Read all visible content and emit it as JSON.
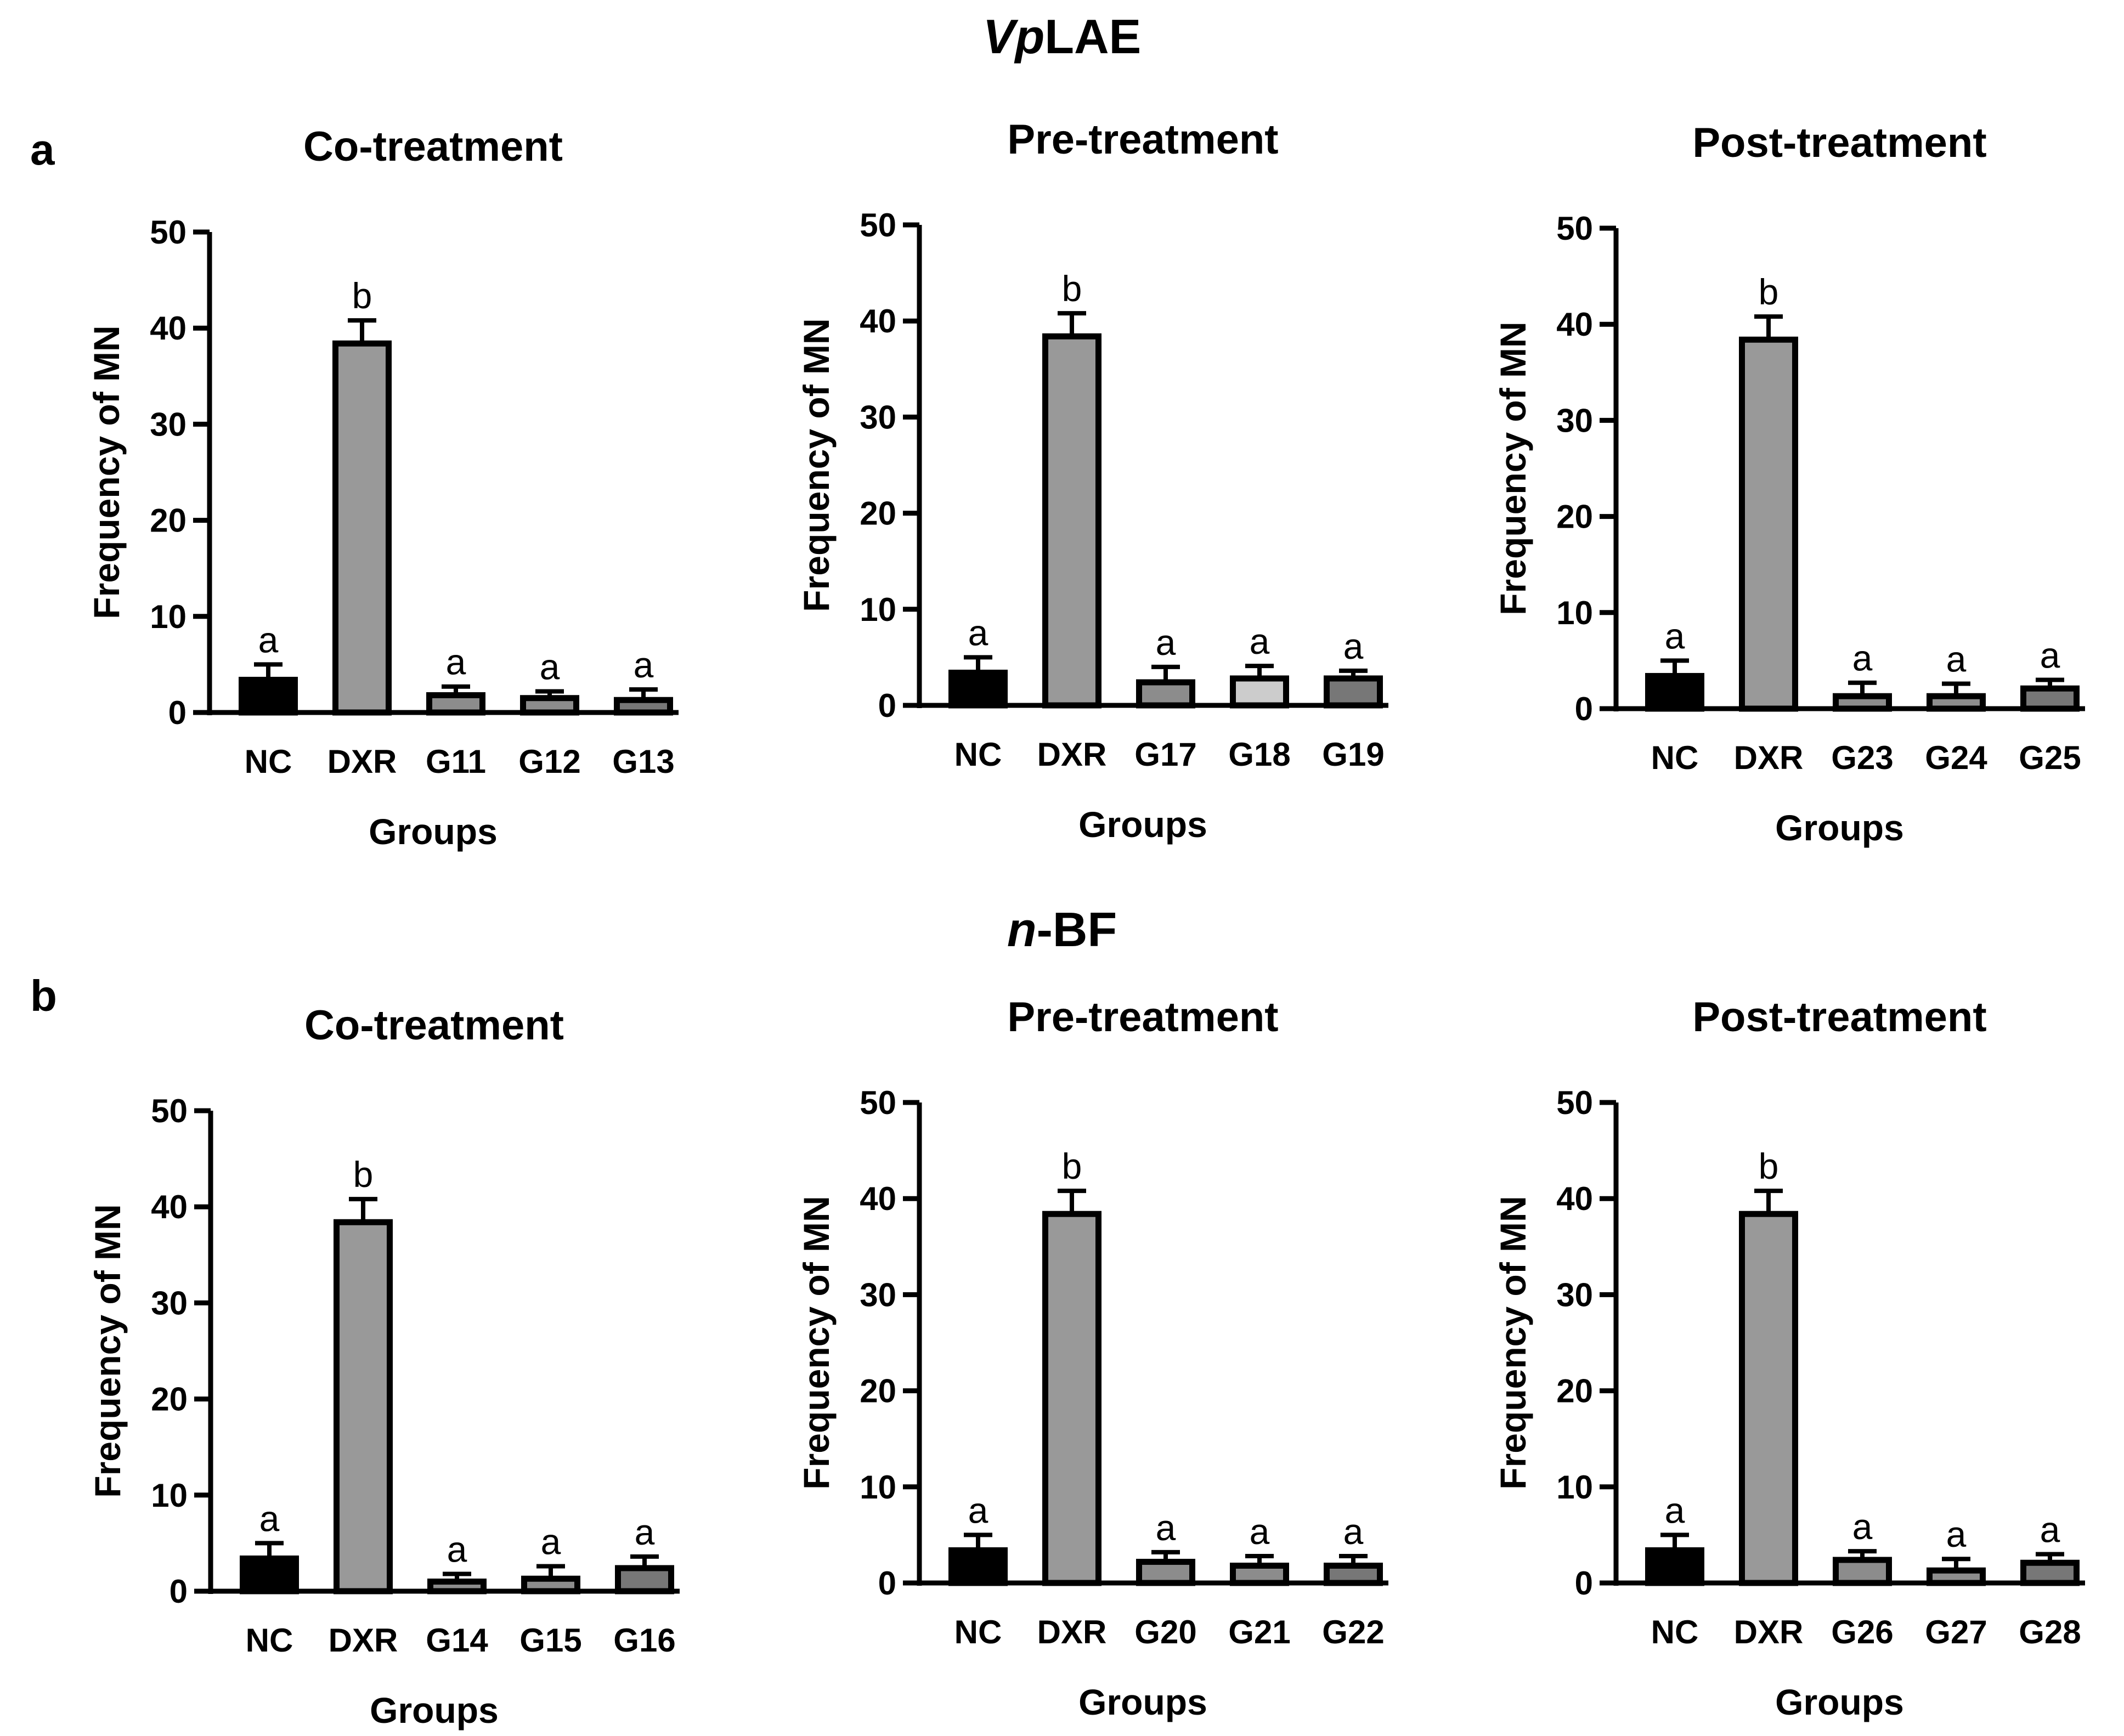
{
  "sections": [
    {
      "label": "a",
      "title_italic": "Vp",
      "title_rest": "LAE"
    },
    {
      "label": "b",
      "title_italic": "n",
      "title_rest": "-BF"
    }
  ],
  "colors": {
    "NC": "#000000",
    "DXR": "#999999",
    "G_dark": "#777777",
    "G_mid": "#8c8c8c",
    "G_light": "#cccccc"
  },
  "chart_data": [
    {
      "type": "bar",
      "section": "a",
      "title": "Co-treatment",
      "xlabel": "Groups",
      "ylabel": "Frequency of MN",
      "ylim": [
        0,
        50
      ],
      "yticks": [
        0,
        10,
        20,
        30,
        40,
        50
      ],
      "categories": [
        "NC",
        "DXR",
        "G11",
        "G12",
        "G13"
      ],
      "values": [
        3.4,
        38.4,
        1.8,
        1.5,
        1.3
      ],
      "errors": [
        1.6,
        2.4,
        0.9,
        0.7,
        1.1
      ],
      "letters": [
        "a",
        "b",
        "a",
        "a",
        "a"
      ],
      "bar_colors": [
        "#000000",
        "#999999",
        "#8c8c8c",
        "#8c8c8c",
        "#777777"
      ]
    },
    {
      "type": "bar",
      "section": "a",
      "title": "Pre-treatment",
      "xlabel": "Groups",
      "ylabel": "Frequency of MN",
      "ylim": [
        0,
        50
      ],
      "yticks": [
        0,
        10,
        20,
        30,
        40,
        50
      ],
      "categories": [
        "NC",
        "DXR",
        "G17",
        "G18",
        "G19"
      ],
      "values": [
        3.4,
        38.4,
        2.4,
        2.8,
        2.8
      ],
      "errors": [
        1.6,
        2.4,
        1.6,
        1.3,
        0.8
      ],
      "letters": [
        "a",
        "b",
        "a",
        "a",
        "a"
      ],
      "bar_colors": [
        "#000000",
        "#999999",
        "#8c8c8c",
        "#cccccc",
        "#777777"
      ]
    },
    {
      "type": "bar",
      "section": "a",
      "title": "Post-treatment",
      "xlabel": "Groups",
      "ylabel": "Frequency of MN",
      "ylim": [
        0,
        50
      ],
      "yticks": [
        0,
        10,
        20,
        30,
        40,
        50
      ],
      "categories": [
        "NC",
        "DXR",
        "G23",
        "G24",
        "G25"
      ],
      "values": [
        3.4,
        38.4,
        1.3,
        1.3,
        2.1
      ],
      "errors": [
        1.6,
        2.4,
        1.4,
        1.3,
        0.9
      ],
      "letters": [
        "a",
        "b",
        "a",
        "a",
        "a"
      ],
      "bar_colors": [
        "#000000",
        "#999999",
        "#8c8c8c",
        "#8c8c8c",
        "#777777"
      ]
    },
    {
      "type": "bar",
      "section": "b",
      "title": "Co-treatment",
      "xlabel": "Groups",
      "ylabel": "Frequency of MN",
      "ylim": [
        0,
        50
      ],
      "yticks": [
        0,
        10,
        20,
        30,
        40,
        50
      ],
      "categories": [
        "NC",
        "DXR",
        "G14",
        "G15",
        "G16"
      ],
      "values": [
        3.4,
        38.4,
        1.0,
        1.3,
        2.4
      ],
      "errors": [
        1.6,
        2.4,
        0.8,
        1.3,
        1.2
      ],
      "letters": [
        "a",
        "b",
        "a",
        "a",
        "a"
      ],
      "bar_colors": [
        "#000000",
        "#999999",
        "#8c8c8c",
        "#8c8c8c",
        "#777777"
      ]
    },
    {
      "type": "bar",
      "section": "b",
      "title": "Pre-treatment",
      "xlabel": "Groups",
      "ylabel": "Frequency of MN",
      "ylim": [
        0,
        50
      ],
      "yticks": [
        0,
        10,
        20,
        30,
        40,
        50
      ],
      "categories": [
        "NC",
        "DXR",
        "G20",
        "G21",
        "G22"
      ],
      "values": [
        3.4,
        38.4,
        2.2,
        1.8,
        1.8
      ],
      "errors": [
        1.6,
        2.4,
        1.0,
        1.0,
        1.0
      ],
      "letters": [
        "a",
        "b",
        "a",
        "a",
        "a"
      ],
      "bar_colors": [
        "#000000",
        "#999999",
        "#8c8c8c",
        "#8c8c8c",
        "#777777"
      ]
    },
    {
      "type": "bar",
      "section": "b",
      "title": "Post-treatment",
      "xlabel": "Groups",
      "ylabel": "Frequency of MN",
      "ylim": [
        0,
        50
      ],
      "yticks": [
        0,
        10,
        20,
        30,
        40,
        50
      ],
      "categories": [
        "NC",
        "DXR",
        "G26",
        "G27",
        "G28"
      ],
      "values": [
        3.4,
        38.4,
        2.4,
        1.3,
        2.1
      ],
      "errors": [
        1.6,
        2.4,
        0.9,
        1.2,
        0.9
      ],
      "letters": [
        "a",
        "b",
        "a",
        "a",
        "a"
      ],
      "bar_colors": [
        "#000000",
        "#999999",
        "#8c8c8c",
        "#8c8c8c",
        "#777777"
      ]
    }
  ]
}
